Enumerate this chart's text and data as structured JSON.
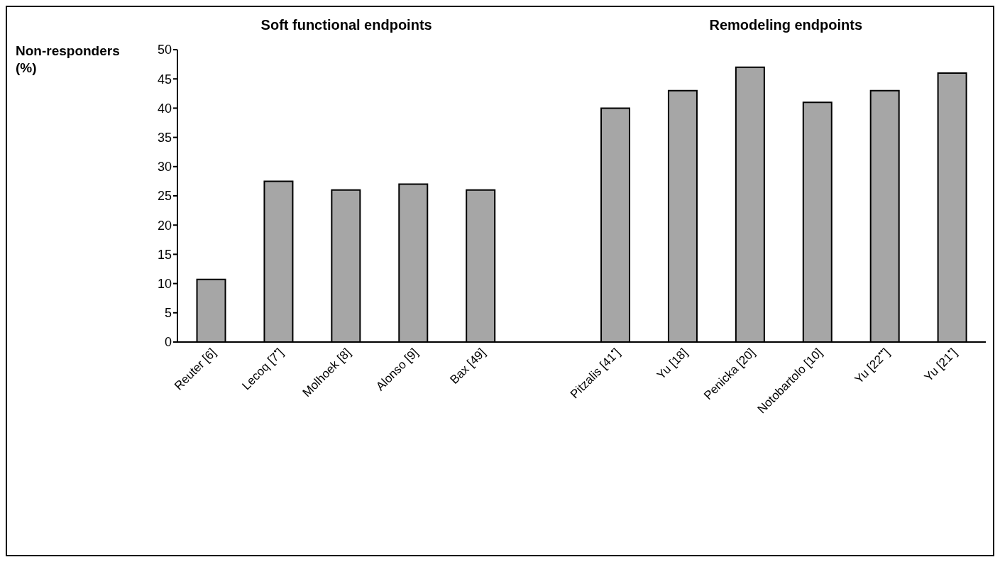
{
  "chart_data": {
    "type": "bar",
    "ylabel": "Non-responders (%)",
    "annotations": [
      "Soft functional endpoints",
      "Remodeling endpoints"
    ],
    "categories": [
      "Reuter [6]",
      "Lecoq [7$^{•}$]",
      "Molhoek [8]",
      "Alonso [9]",
      "Bax [49]",
      null,
      "Pitzalis [41$^{•}$]",
      "Yu [18]",
      "Penicka [20]",
      "Notobartolo [10]",
      "Yu [22$^{••}$]",
      "Yu [21$^{•}$]"
    ],
    "values": [
      10.7,
      27.5,
      26,
      27,
      26,
      null,
      40,
      43,
      47,
      41,
      43,
      46
    ],
    "color": "#a6a6a6",
    "ylim": [
      0,
      50
    ],
    "yticks": [
      0,
      5,
      10,
      15,
      20,
      25,
      30,
      35,
      40,
      45,
      50
    ],
    "grid": false,
    "legend": false
  }
}
